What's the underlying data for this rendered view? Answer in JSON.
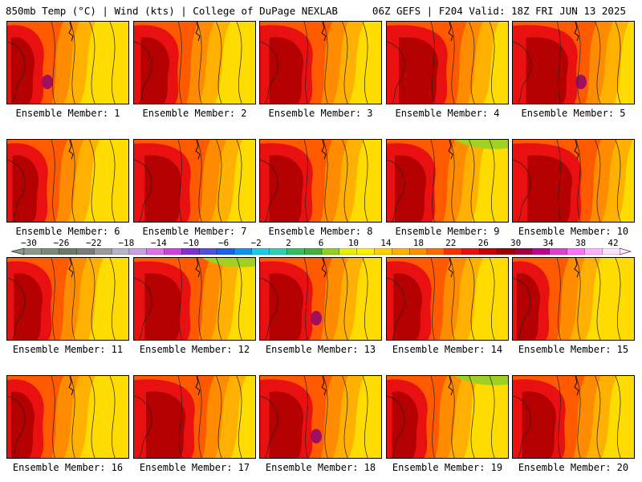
{
  "header": {
    "left": "850mb Temp (°C) | Wind (kts) | College of DuPage NEXLAB",
    "right": "06Z GEFS | F204 Valid: 18Z FRI JUN 13 2025"
  },
  "members": [
    "Ensemble Member: 1",
    "Ensemble Member: 2",
    "Ensemble Member: 3",
    "Ensemble Member: 4",
    "Ensemble Member: 5",
    "Ensemble Member: 6",
    "Ensemble Member: 7",
    "Ensemble Member: 8",
    "Ensemble Member: 9",
    "Ensemble Member: 10",
    "Ensemble Member: 11",
    "Ensemble Member: 12",
    "Ensemble Member: 13",
    "Ensemble Member: 14",
    "Ensemble Member: 15",
    "Ensemble Member: 16",
    "Ensemble Member: 17",
    "Ensemble Member: 18",
    "Ensemble Member: 19",
    "Ensemble Member: 20"
  ],
  "colorbar": {
    "labels": [
      "−30",
      "−26",
      "−22",
      "−18",
      "−14",
      "−10",
      "−6",
      "−2",
      "2",
      "6",
      "10",
      "14",
      "18",
      "22",
      "26",
      "30",
      "34",
      "38",
      "42"
    ],
    "colors": [
      "#8a9a8a",
      "#7a8a7a",
      "#6a7a6a",
      "#7a7a7a",
      "#9a9a9a",
      "#b4b4c8",
      "#c8a0e6",
      "#e070e6",
      "#d040e0",
      "#8030d8",
      "#5050e0",
      "#2060e8",
      "#1090f0",
      "#20c8e6",
      "#30d0b0",
      "#30c060",
      "#40b040",
      "#90d020",
      "#e6f000",
      "#ffee00",
      "#ffd000",
      "#ffb000",
      "#ff9000",
      "#ff6a00",
      "#ff3000",
      "#e81010",
      "#c80000",
      "#9c0000",
      "#a00040",
      "#c00090",
      "#e040d0",
      "#ff70ff",
      "#ffb0ff",
      "#ffe0ff"
    ]
  },
  "palette": {
    "yellow": "#ffdc00",
    "orange_light": "#ffb000",
    "orange": "#ff8c00",
    "red_orange": "#ff5a00",
    "red": "#e81010",
    "dark_red": "#b40000",
    "magenta": "#a01060",
    "green": "#a0d020"
  }
}
